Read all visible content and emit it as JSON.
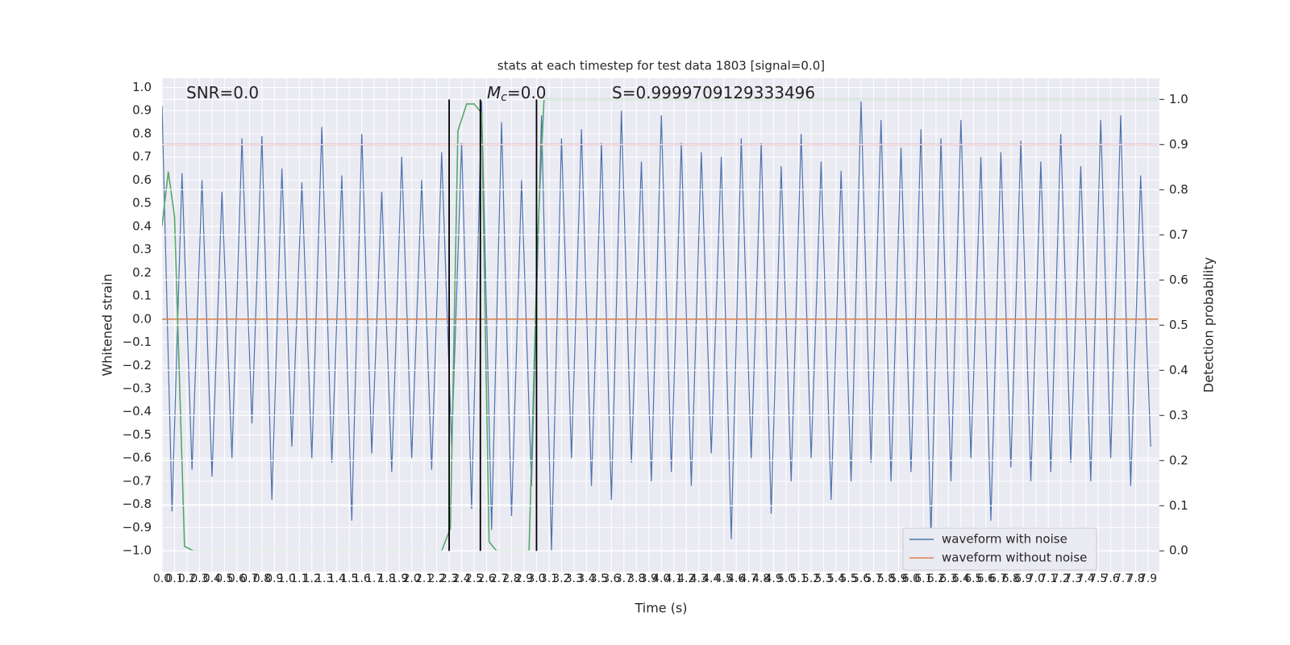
{
  "chart_data": {
    "type": "line",
    "title": "stats at each timestep for test data 1803 [signal=0.0]",
    "xlabel": "Time (s)",
    "ylabel": "Whitened strain",
    "y2label": "Detection probability",
    "grid": true,
    "legend": "lower right",
    "xlim": [
      0,
      7.99
    ],
    "ylim": [
      -1.09,
      1.04
    ],
    "y2lim": [
      -0.046,
      1.047
    ],
    "xticks": [
      {
        "value": 0,
        "label": "0.0"
      },
      0.1,
      0.2,
      0.3,
      0.4,
      0.5,
      0.6,
      0.7,
      0.8,
      0.9,
      {
        "value": 1,
        "label": "1.0"
      },
      1.1,
      1.2,
      1.3,
      1.4,
      1.5,
      1.6,
      1.7,
      1.8,
      1.9,
      {
        "value": 2,
        "label": "2.0"
      },
      2.1,
      2.2,
      2.3,
      2.4,
      2.5,
      2.6,
      2.7,
      2.8,
      2.9,
      {
        "value": 3,
        "label": "3.0"
      },
      3.1,
      3.2,
      3.3,
      3.4,
      3.5,
      3.6,
      3.7,
      3.8,
      3.9,
      {
        "value": 4,
        "label": "4.0"
      },
      4.1,
      4.2,
      4.3,
      4.4,
      4.5,
      4.6,
      4.7,
      4.8,
      4.9,
      {
        "value": 5,
        "label": "5.0"
      },
      5.1,
      5.2,
      5.3,
      5.4,
      5.5,
      5.6,
      5.7,
      5.8,
      5.9,
      {
        "value": 6,
        "label": "6.0"
      },
      6.1,
      6.2,
      6.3,
      6.4,
      6.5,
      6.6,
      6.7,
      6.8,
      6.9,
      {
        "value": 7,
        "label": "7.0"
      },
      7.1,
      7.2,
      7.3,
      7.4,
      7.5,
      7.6,
      7.7,
      7.8,
      7.9
    ],
    "yticks": [
      {
        "value": -1,
        "label": "−1.0"
      },
      {
        "value": -0.9,
        "label": "−0.9"
      },
      {
        "value": -0.8,
        "label": "−0.8"
      },
      {
        "value": -0.7,
        "label": "−0.7"
      },
      {
        "value": -0.6,
        "label": "−0.6"
      },
      {
        "value": -0.5,
        "label": "−0.5"
      },
      {
        "value": -0.4,
        "label": "−0.4"
      },
      {
        "value": -0.3,
        "label": "−0.3"
      },
      {
        "value": -0.2,
        "label": "−0.2"
      },
      {
        "value": -0.1,
        "label": "−0.1"
      },
      {
        "value": 0,
        "label": "0.0"
      },
      0.1,
      0.2,
      0.3,
      0.4,
      0.5,
      0.6,
      0.7,
      0.8,
      0.9,
      {
        "value": 1,
        "label": "1.0"
      }
    ],
    "y2ticks": [
      {
        "value": 0,
        "label": "0.0"
      },
      0.1,
      0.2,
      0.3,
      0.4,
      0.5,
      0.6,
      0.7,
      0.8,
      0.9,
      {
        "value": 1,
        "label": "1.0"
      }
    ],
    "series": [
      {
        "name": "waveform with noise",
        "color": "#4c72b0",
        "x": [
          0,
          0.08,
          0.16,
          0.24,
          0.32,
          0.4,
          0.48,
          0.56,
          0.64,
          0.72,
          0.8,
          0.88,
          0.96,
          1.04,
          1.12,
          1.2,
          1.28,
          1.36,
          1.44,
          1.52,
          1.6,
          1.68,
          1.76,
          1.84,
          1.92,
          2,
          2.08,
          2.16,
          2.24,
          2.32,
          2.4,
          2.48,
          2.56,
          2.64,
          2.72,
          2.8,
          2.88,
          2.96,
          3.04,
          3.12,
          3.2,
          3.28,
          3.36,
          3.44,
          3.52,
          3.6,
          3.68,
          3.76,
          3.84,
          3.92,
          4,
          4.08,
          4.16,
          4.24,
          4.32,
          4.4,
          4.48,
          4.56,
          4.64,
          4.72,
          4.8,
          4.88,
          4.96,
          5.04,
          5.12,
          5.2,
          5.28,
          5.36,
          5.44,
          5.52,
          5.6,
          5.68,
          5.76,
          5.84,
          5.92,
          6,
          6.08,
          6.16,
          6.24,
          6.32,
          6.4,
          6.48,
          6.56,
          6.64,
          6.72,
          6.8,
          6.88,
          6.96,
          7.04,
          7.12,
          7.2,
          7.28,
          7.36,
          7.44,
          7.52,
          7.6,
          7.68,
          7.76,
          7.84,
          7.92
        ],
        "values": [
          0.92,
          -0.83,
          0.63,
          -0.65,
          0.6,
          -0.68,
          0.55,
          -0.6,
          0.78,
          -0.45,
          0.79,
          -0.78,
          0.65,
          -0.55,
          0.59,
          -0.6,
          0.83,
          -0.62,
          0.62,
          -0.87,
          0.8,
          -0.58,
          0.55,
          -0.66,
          0.7,
          -0.6,
          0.6,
          -0.65,
          0.72,
          -0.55,
          0.76,
          -0.82,
          0.94,
          -0.91,
          0.85,
          -0.85,
          0.6,
          -0.72,
          0.88,
          -1.0,
          0.78,
          -0.6,
          0.82,
          -0.72,
          0.76,
          -0.78,
          0.9,
          -0.62,
          0.68,
          -0.7,
          0.88,
          -0.66,
          0.76,
          -0.72,
          0.72,
          -0.58,
          0.7,
          -0.95,
          0.78,
          -0.6,
          0.76,
          -0.84,
          0.66,
          -0.7,
          0.8,
          -0.6,
          0.68,
          -0.78,
          0.64,
          -0.7,
          0.94,
          -0.62,
          0.86,
          -0.7,
          0.74,
          -0.66,
          0.82,
          -0.94,
          0.78,
          -0.7,
          0.86,
          -0.6,
          0.7,
          -0.87,
          0.72,
          -0.64,
          0.77,
          -0.7,
          0.68,
          -0.66,
          0.8,
          -0.62,
          0.66,
          -0.7,
          0.86,
          -0.6,
          0.88,
          -0.72,
          0.62,
          -0.55
        ]
      },
      {
        "name": "waveform without noise",
        "color": "#dd8452",
        "x": [
          0,
          7.98
        ],
        "values": [
          0,
          0
        ]
      },
      {
        "color": "#55a868",
        "axis": "y2",
        "x": [
          0,
          0.05,
          0.1,
          0.18,
          0.25,
          2.24,
          2.31,
          2.37,
          2.44,
          2.5,
          2.56,
          2.62,
          2.68,
          2.94,
          3.01,
          3.06,
          7.98
        ],
        "values": [
          0.72,
          0.84,
          0.74,
          0.01,
          0,
          0,
          0.05,
          0.93,
          0.99,
          0.99,
          0.97,
          0.02,
          0,
          0,
          0.7,
          1,
          1
        ]
      },
      {
        "color": "#c44e52",
        "axis": "y2",
        "x": [
          0,
          7.98
        ],
        "values": [
          0.9,
          0.9
        ]
      }
    ],
    "vlines": {
      "x": [
        2.3,
        2.55,
        3.0
      ],
      "ymin": 0,
      "ymax": 1,
      "axis": "y2",
      "color": "#000000"
    },
    "annotations": [
      {
        "text": "SNR=0.0"
      },
      {
        "text": "M",
        "subscript": "c",
        "suffix": "=0.0"
      },
      {
        "text": "S=0.9999709129333496"
      }
    ]
  }
}
